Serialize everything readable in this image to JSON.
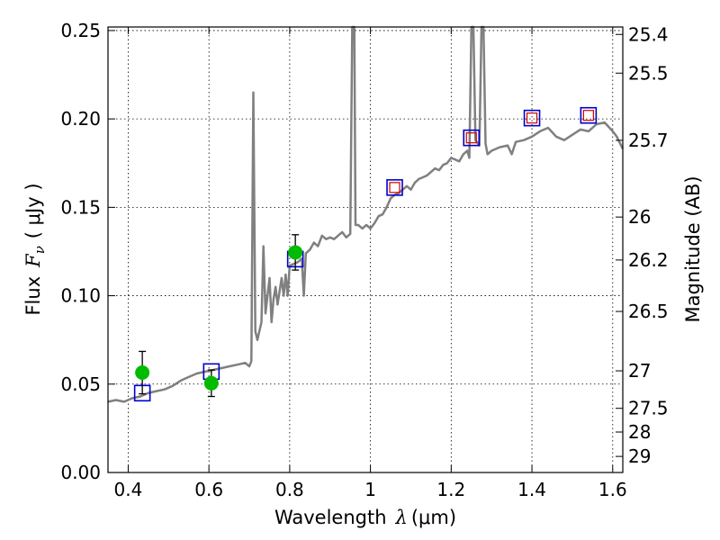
{
  "chart_data": {
    "type": "line",
    "xlabel": {
      "text": "Wavelength",
      "symbol": "λ",
      "unit": "(μm)"
    },
    "ylabel": {
      "text": "Flux",
      "symbol": "F",
      "subscript": "ν",
      "unit": "( μJy )"
    },
    "y2label": "Magnitude (AB)",
    "xlim": [
      0.35,
      1.625
    ],
    "ylim": [
      0.0,
      0.252
    ],
    "grid": true,
    "xticks": [
      {
        "v": 0.4,
        "label": "0.4"
      },
      {
        "v": 0.6,
        "label": "0.6"
      },
      {
        "v": 0.8,
        "label": "0.8"
      },
      {
        "v": 1.0,
        "label": "1"
      },
      {
        "v": 1.2,
        "label": "1.2"
      },
      {
        "v": 1.4,
        "label": "1.4"
      },
      {
        "v": 1.6,
        "label": "1.6"
      }
    ],
    "yticks": [
      {
        "v": 0.0,
        "label": "0.00"
      },
      {
        "v": 0.05,
        "label": "0.05"
      },
      {
        "v": 0.1,
        "label": "0.10"
      },
      {
        "v": 0.15,
        "label": "0.15"
      },
      {
        "v": 0.2,
        "label": "0.20"
      },
      {
        "v": 0.25,
        "label": "0.25"
      }
    ],
    "magnitude_ticks": [
      {
        "flux": 0.2478,
        "label": "25.4"
      },
      {
        "flux": 0.2259,
        "label": "25.5"
      },
      {
        "flux": 0.1879,
        "label": "25.7"
      },
      {
        "flux": 0.1445,
        "label": "26"
      },
      {
        "flux": 0.1202,
        "label": "26.2"
      },
      {
        "flux": 0.0911,
        "label": "26.5"
      },
      {
        "flux": 0.0575,
        "label": "27"
      },
      {
        "flux": 0.0363,
        "label": "27.5"
      },
      {
        "flux": 0.0229,
        "label": "28"
      },
      {
        "flux": 0.0091,
        "label": "29"
      }
    ],
    "series": [
      {
        "name": "model spectrum",
        "color": "#808080",
        "points": [
          [
            0.35,
            0.04
          ],
          [
            0.37,
            0.041
          ],
          [
            0.39,
            0.04
          ],
          [
            0.41,
            0.042
          ],
          [
            0.43,
            0.043
          ],
          [
            0.45,
            0.045
          ],
          [
            0.47,
            0.046
          ],
          [
            0.49,
            0.047
          ],
          [
            0.51,
            0.049
          ],
          [
            0.53,
            0.052
          ],
          [
            0.55,
            0.054
          ],
          [
            0.57,
            0.056
          ],
          [
            0.59,
            0.057
          ],
          [
            0.61,
            0.058
          ],
          [
            0.63,
            0.059
          ],
          [
            0.65,
            0.06
          ],
          [
            0.67,
            0.061
          ],
          [
            0.69,
            0.062
          ],
          [
            0.7,
            0.06
          ],
          [
            0.705,
            0.063
          ],
          [
            0.71,
            0.215
          ],
          [
            0.715,
            0.08
          ],
          [
            0.72,
            0.075
          ],
          [
            0.73,
            0.085
          ],
          [
            0.735,
            0.128
          ],
          [
            0.74,
            0.09
          ],
          [
            0.75,
            0.11
          ],
          [
            0.755,
            0.085
          ],
          [
            0.76,
            0.098
          ],
          [
            0.765,
            0.105
          ],
          [
            0.77,
            0.095
          ],
          [
            0.78,
            0.11
          ],
          [
            0.785,
            0.1
          ],
          [
            0.79,
            0.112
          ],
          [
            0.795,
            0.1
          ],
          [
            0.8,
            0.117
          ],
          [
            0.81,
            0.118
          ],
          [
            0.82,
            0.119
          ],
          [
            0.83,
            0.121
          ],
          [
            0.835,
            0.1
          ],
          [
            0.84,
            0.124
          ],
          [
            0.85,
            0.126
          ],
          [
            0.86,
            0.13
          ],
          [
            0.87,
            0.128
          ],
          [
            0.88,
            0.134
          ],
          [
            0.89,
            0.132
          ],
          [
            0.9,
            0.133
          ],
          [
            0.91,
            0.132
          ],
          [
            0.92,
            0.134
          ],
          [
            0.93,
            0.136
          ],
          [
            0.94,
            0.133
          ],
          [
            0.95,
            0.135
          ],
          [
            0.955,
            0.252
          ],
          [
            0.96,
            0.252
          ],
          [
            0.963,
            0.14
          ],
          [
            0.97,
            0.14
          ],
          [
            0.98,
            0.138
          ],
          [
            0.99,
            0.14
          ],
          [
            1.0,
            0.138
          ],
          [
            1.01,
            0.141
          ],
          [
            1.02,
            0.145
          ],
          [
            1.03,
            0.146
          ],
          [
            1.04,
            0.15
          ],
          [
            1.05,
            0.155
          ],
          [
            1.06,
            0.157
          ],
          [
            1.07,
            0.158
          ],
          [
            1.08,
            0.16
          ],
          [
            1.09,
            0.162
          ],
          [
            1.1,
            0.16
          ],
          [
            1.11,
            0.164
          ],
          [
            1.12,
            0.166
          ],
          [
            1.13,
            0.167
          ],
          [
            1.14,
            0.168
          ],
          [
            1.15,
            0.17
          ],
          [
            1.16,
            0.172
          ],
          [
            1.17,
            0.171
          ],
          [
            1.18,
            0.174
          ],
          [
            1.19,
            0.175
          ],
          [
            1.2,
            0.178
          ],
          [
            1.21,
            0.177
          ],
          [
            1.22,
            0.176
          ],
          [
            1.23,
            0.18
          ],
          [
            1.24,
            0.182
          ],
          [
            1.245,
            0.178
          ],
          [
            1.25,
            0.252
          ],
          [
            1.255,
            0.252
          ],
          [
            1.26,
            0.188
          ],
          [
            1.27,
            0.185
          ],
          [
            1.275,
            0.252
          ],
          [
            1.28,
            0.252
          ],
          [
            1.285,
            0.186
          ],
          [
            1.29,
            0.18
          ],
          [
            1.3,
            0.182
          ],
          [
            1.32,
            0.184
          ],
          [
            1.34,
            0.185
          ],
          [
            1.35,
            0.18
          ],
          [
            1.36,
            0.187
          ],
          [
            1.38,
            0.188
          ],
          [
            1.4,
            0.19
          ],
          [
            1.42,
            0.193
          ],
          [
            1.44,
            0.195
          ],
          [
            1.46,
            0.19
          ],
          [
            1.48,
            0.188
          ],
          [
            1.5,
            0.191
          ],
          [
            1.52,
            0.194
          ],
          [
            1.54,
            0.193
          ],
          [
            1.56,
            0.197
          ],
          [
            1.58,
            0.198
          ],
          [
            1.6,
            0.193
          ],
          [
            1.61,
            0.19
          ],
          [
            1.625,
            0.183
          ]
        ]
      }
    ],
    "photometry": [
      {
        "x": 0.435,
        "y": 0.0565,
        "err": 0.012,
        "color": "#00bb00"
      },
      {
        "x": 0.606,
        "y": 0.0505,
        "err": 0.0075,
        "color": "#00bb00"
      },
      {
        "x": 0.814,
        "y": 0.1245,
        "err": 0.01,
        "color": "#00bb00"
      }
    ],
    "model_points": [
      {
        "x": 0.435,
        "y": 0.0449
      },
      {
        "x": 0.606,
        "y": 0.0571
      },
      {
        "x": 0.814,
        "y": 0.1207
      },
      {
        "x": 1.06,
        "y": 0.1612,
        "inner": true
      },
      {
        "x": 1.25,
        "y": 0.1893,
        "inner": true
      },
      {
        "x": 1.4,
        "y": 0.2005,
        "inner": true
      },
      {
        "x": 1.54,
        "y": 0.202,
        "inner": true
      }
    ],
    "colors": {
      "spectrum": "#808080",
      "photometry": "#00bb00",
      "model_box": "#0000cc",
      "model_inner": "#cc0000"
    }
  }
}
